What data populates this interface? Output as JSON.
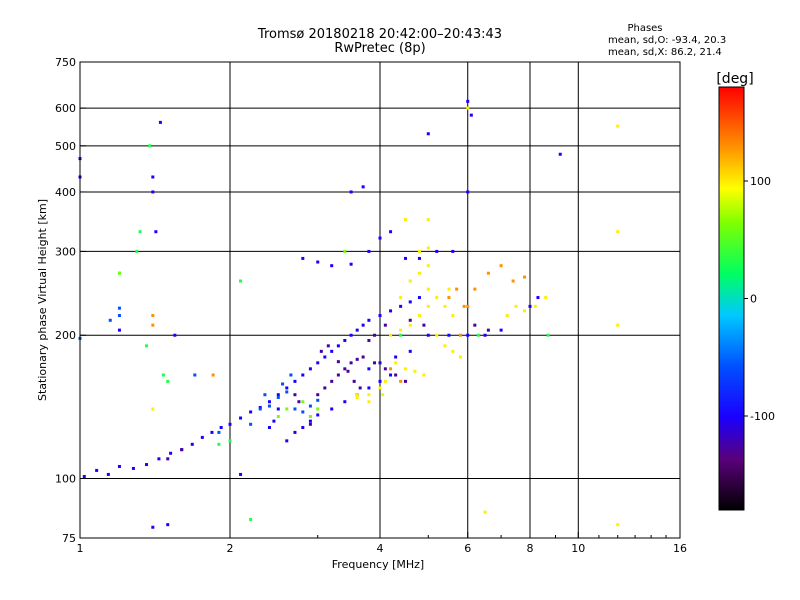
{
  "chart_data": {
    "type": "scatter",
    "title": "Tromsø 20180218 20:42:00–20:43:43",
    "subtitle": "RwPretec (8p)",
    "xlabel": "Frequency [MHz]",
    "ylabel": "Stationary phase Virtual Height [km]",
    "x_scale": "log",
    "y_scale": "log",
    "xlim": [
      1,
      16
    ],
    "ylim": [
      75,
      750
    ],
    "xticks": [
      1,
      2,
      4,
      6,
      8,
      10,
      16
    ],
    "xtick_labels": [
      "1",
      "2",
      "4",
      "6",
      "8",
      "10",
      "16"
    ],
    "yticks": [
      75,
      100,
      200,
      300,
      400,
      500,
      600,
      750
    ],
    "ytick_labels": [
      "75",
      "100",
      "200",
      "300",
      "400",
      "500",
      "600",
      "750"
    ],
    "grid": true,
    "phase_stats": {
      "title": "Phases",
      "line_o": "mean, sd,O: -93.4, 20.3",
      "line_x": "mean, sd,X: 86.2, 21.4"
    },
    "colorbar": {
      "label": "[deg]",
      "range": [
        -180,
        180
      ],
      "ticks": [
        100,
        0,
        -100
      ],
      "tick_labels": [
        "100",
        "0",
        "-100"
      ],
      "colormap": "rainbow"
    },
    "series": [
      {
        "phase": -100,
        "points": [
          [
            1.02,
            101
          ],
          [
            1.08,
            104
          ],
          [
            1.14,
            102
          ],
          [
            1.2,
            106
          ],
          [
            1.28,
            105
          ],
          [
            1.36,
            107
          ],
          [
            1.44,
            110
          ],
          [
            1.52,
            113
          ],
          [
            1.6,
            115
          ],
          [
            1.68,
            118
          ],
          [
            1.76,
            122
          ],
          [
            1.84,
            125
          ],
          [
            1.92,
            128
          ],
          [
            2.0,
            130
          ],
          [
            2.1,
            134
          ],
          [
            2.2,
            138
          ],
          [
            2.3,
            141
          ],
          [
            2.4,
            145
          ],
          [
            2.5,
            150
          ],
          [
            2.6,
            155
          ],
          [
            2.7,
            160
          ],
          [
            2.8,
            165
          ],
          [
            2.9,
            170
          ],
          [
            3.0,
            175
          ],
          [
            3.1,
            180
          ],
          [
            3.2,
            185
          ],
          [
            3.3,
            190
          ],
          [
            3.4,
            195
          ],
          [
            3.5,
            200
          ],
          [
            3.6,
            205
          ],
          [
            3.7,
            210
          ],
          [
            3.8,
            215
          ],
          [
            4.0,
            220
          ],
          [
            4.2,
            225
          ],
          [
            4.4,
            230
          ],
          [
            4.6,
            235
          ],
          [
            4.8,
            240
          ],
          [
            5.0,
            200
          ],
          [
            5.5,
            200
          ],
          [
            6.0,
            200
          ],
          [
            6.5,
            200
          ],
          [
            7.0,
            205
          ],
          [
            2.6,
            120
          ],
          [
            2.7,
            125
          ],
          [
            2.8,
            128
          ],
          [
            2.9,
            132
          ],
          [
            3.0,
            136
          ],
          [
            3.2,
            140
          ],
          [
            3.4,
            145
          ],
          [
            3.6,
            150
          ],
          [
            3.8,
            155
          ],
          [
            4.0,
            160
          ],
          [
            4.2,
            165
          ],
          [
            2.8,
            290
          ],
          [
            3.0,
            285
          ],
          [
            3.2,
            280
          ],
          [
            3.5,
            282
          ],
          [
            3.8,
            300
          ],
          [
            4.0,
            320
          ],
          [
            4.2,
            330
          ],
          [
            4.5,
            290
          ],
          [
            4.8,
            290
          ],
          [
            5.2,
            300
          ],
          [
            5.6,
            300
          ],
          [
            1.4,
            430
          ],
          [
            1.4,
            400
          ],
          [
            1.42,
            330
          ],
          [
            1.45,
            560
          ],
          [
            1.2,
            205
          ],
          [
            1.55,
            200
          ],
          [
            3.5,
            400
          ],
          [
            3.7,
            410
          ],
          [
            6.0,
            620
          ],
          [
            6.1,
            580
          ],
          [
            5.0,
            530
          ],
          [
            9.2,
            480
          ],
          [
            1.0,
            470
          ],
          [
            1.0,
            430
          ],
          [
            6.0,
            400
          ],
          [
            3.8,
            170
          ],
          [
            4.0,
            175
          ],
          [
            4.3,
            180
          ],
          [
            4.6,
            185
          ],
          [
            2.4,
            128
          ],
          [
            2.45,
            132
          ],
          [
            2.5,
            140
          ],
          [
            1.5,
            80
          ],
          [
            1.4,
            79
          ],
          [
            2.1,
            102
          ],
          [
            8.0,
            230
          ],
          [
            8.3,
            240
          ]
        ]
      },
      {
        "phase": -130,
        "points": [
          [
            2.9,
            130
          ],
          [
            3.0,
            150
          ],
          [
            3.1,
            155
          ],
          [
            3.2,
            160
          ],
          [
            3.3,
            165
          ],
          [
            3.4,
            170
          ],
          [
            3.5,
            175
          ],
          [
            3.6,
            178
          ],
          [
            3.7,
            180
          ],
          [
            3.9,
            175
          ],
          [
            4.1,
            170
          ],
          [
            4.3,
            165
          ],
          [
            4.5,
            160
          ],
          [
            2.7,
            150
          ],
          [
            2.75,
            145
          ],
          [
            3.05,
            185
          ],
          [
            3.15,
            190
          ],
          [
            3.3,
            176
          ],
          [
            3.45,
            168
          ],
          [
            3.55,
            160
          ],
          [
            3.65,
            155
          ],
          [
            3.8,
            195
          ],
          [
            3.9,
            200
          ],
          [
            4.1,
            210
          ],
          [
            4.6,
            215
          ],
          [
            4.9,
            210
          ],
          [
            6.2,
            210
          ],
          [
            6.6,
            205
          ],
          [
            1.5,
            110
          ],
          [
            1.6,
            115
          ]
        ]
      },
      {
        "phase": -60,
        "points": [
          [
            2.3,
            140
          ],
          [
            2.4,
            142
          ],
          [
            2.5,
            148
          ],
          [
            2.6,
            152
          ],
          [
            2.7,
            140
          ],
          [
            2.8,
            138
          ],
          [
            2.9,
            142
          ],
          [
            3.0,
            146
          ],
          [
            2.2,
            130
          ],
          [
            2.35,
            150
          ],
          [
            2.55,
            158
          ],
          [
            2.65,
            165
          ],
          [
            1.9,
            125
          ],
          [
            1.2,
            220
          ],
          [
            1.2,
            228
          ],
          [
            1.15,
            215
          ],
          [
            1.0,
            197
          ],
          [
            1.7,
            165
          ]
        ]
      },
      {
        "phase": 100,
        "points": [
          [
            4.4,
            240
          ],
          [
            4.6,
            260
          ],
          [
            4.8,
            270
          ],
          [
            5.0,
            250
          ],
          [
            5.2,
            240
          ],
          [
            5.4,
            230
          ],
          [
            5.6,
            220
          ],
          [
            4.2,
            200
          ],
          [
            4.4,
            205
          ],
          [
            4.6,
            210
          ],
          [
            4.8,
            220
          ],
          [
            5.0,
            230
          ],
          [
            5.2,
            200
          ],
          [
            5.4,
            190
          ],
          [
            5.6,
            185
          ],
          [
            5.8,
            180
          ],
          [
            4.3,
            175
          ],
          [
            4.5,
            170
          ],
          [
            4.7,
            168
          ],
          [
            4.9,
            165
          ],
          [
            3.8,
            150
          ],
          [
            4.0,
            155
          ],
          [
            4.1,
            160
          ],
          [
            3.6,
            148
          ],
          [
            4.8,
            300
          ],
          [
            5.0,
            305
          ],
          [
            7.2,
            220
          ],
          [
            7.5,
            230
          ],
          [
            7.8,
            225
          ],
          [
            8.2,
            230
          ],
          [
            8.6,
            240
          ],
          [
            5.0,
            350
          ],
          [
            4.5,
            350
          ],
          [
            12.0,
            550
          ],
          [
            12.0,
            330
          ],
          [
            12.0,
            210
          ],
          [
            12.0,
            80
          ],
          [
            6.5,
            85
          ],
          [
            3.6,
            150
          ],
          [
            3.8,
            145
          ],
          [
            4.05,
            150
          ],
          [
            1.4,
            140
          ],
          [
            5.0,
            280
          ],
          [
            5.5,
            250
          ],
          [
            6.0,
            600
          ]
        ]
      },
      {
        "phase": 130,
        "points": [
          [
            5.5,
            240
          ],
          [
            5.7,
            250
          ],
          [
            5.9,
            230
          ],
          [
            6.2,
            250
          ],
          [
            6.6,
            270
          ],
          [
            7.0,
            280
          ],
          [
            7.4,
            260
          ],
          [
            7.8,
            265
          ],
          [
            6.0,
            230
          ],
          [
            5.8,
            200
          ],
          [
            4.2,
            170
          ],
          [
            4.4,
            160
          ],
          [
            1.85,
            165
          ],
          [
            1.4,
            220
          ],
          [
            1.4,
            210
          ]
        ]
      },
      {
        "phase": 30,
        "points": [
          [
            1.38,
            500
          ],
          [
            1.3,
            300
          ],
          [
            1.2,
            270
          ],
          [
            1.5,
            160
          ],
          [
            2.1,
            260
          ],
          [
            2.0,
            120
          ],
          [
            1.9,
            118
          ],
          [
            8.7,
            200
          ],
          [
            6.3,
            200
          ],
          [
            4.4,
            200
          ],
          [
            2.2,
            82
          ],
          [
            1.32,
            330
          ],
          [
            1.36,
            190
          ],
          [
            1.47,
            165
          ]
        ]
      },
      {
        "phase": 60,
        "points": [
          [
            1.2,
            270
          ],
          [
            3.4,
            300
          ],
          [
            3.0,
            140
          ],
          [
            2.8,
            145
          ],
          [
            2.6,
            140
          ],
          [
            2.5,
            135
          ],
          [
            2.9,
            135
          ]
        ]
      }
    ]
  }
}
